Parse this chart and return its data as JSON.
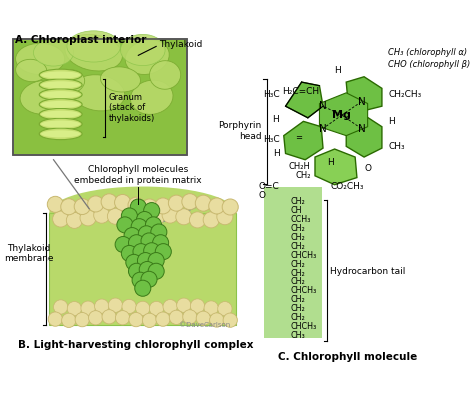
{
  "bg_color": "#ffffff",
  "label_A": "A. Chloroplast interior",
  "label_B": "B. Light-harvesting chlorophyll complex",
  "label_C": "C. Chlorophyll molecule",
  "label_thylakoid": "Thylakoid",
  "label_granum": "Granum\n(stack of\nthylakoids)",
  "label_porphyrin": "Porphyrin\nhead",
  "label_thylakoid_membrane": "Thylakoid\nmembrane",
  "label_chlorophyll_embedded": "Chlorophyll molecules\nembedded in protein matrix",
  "label_hydrocarbon": "Hydrocarbon tail",
  "copyright": "©DaveCarlson",
  "green_light": "#b8d96a",
  "green_med": "#8ac040",
  "green_dark": "#5a8a2e",
  "green_molecule": "#6ec044",
  "green_bg_tail": "#90d060",
  "tan_light": "#e8dda0",
  "tan_dark": "#c8b870",
  "blue_arrow": "#3060b8",
  "chain_lines": [
    "CH₂",
    "CH",
    "CCH₃",
    "CH₂",
    "CH₂",
    "CH₂",
    "CHCH₃",
    "CH₂",
    "CH₂",
    "CH₂",
    "CHCH₃",
    "CH₂",
    "CH₂",
    "CH₂",
    "CHCH₃",
    "CH₃"
  ]
}
